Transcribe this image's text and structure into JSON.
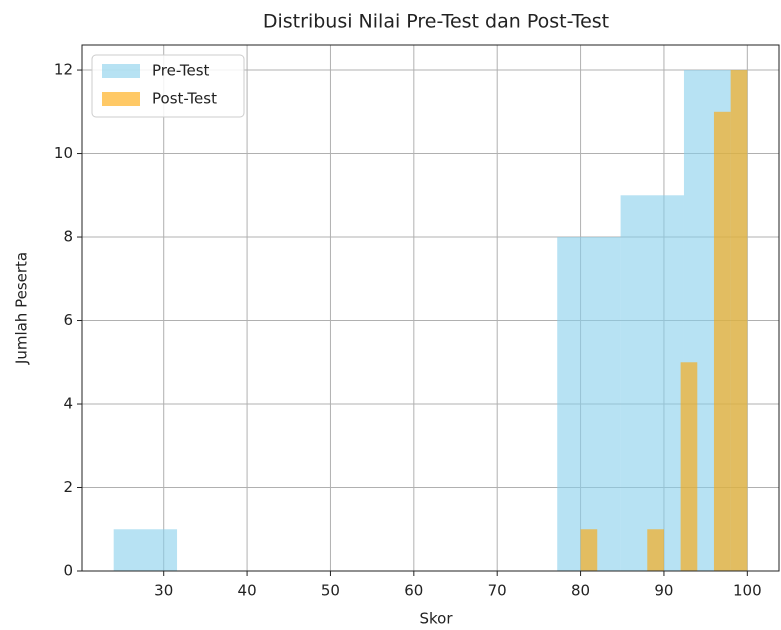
{
  "chart_data": {
    "type": "histogram",
    "title": "Distribusi Nilai Pre-Test dan Post-Test",
    "xlabel": "Skor",
    "ylabel": "Jumlah Peserta",
    "series": [
      {
        "name": "Pre-Test",
        "color": "#87ceeb",
        "opacity": 0.6,
        "bins": [
          24,
          31.6,
          39.2,
          46.8,
          54.4,
          62,
          69.6,
          77.2,
          84.8,
          92.4,
          100
        ],
        "values": [
          1,
          0,
          0,
          0,
          0,
          0,
          0,
          8,
          9,
          12
        ]
      },
      {
        "name": "Post-Test",
        "color": "#ffa500",
        "opacity": 0.6,
        "bins": [
          80,
          82,
          84,
          86,
          88,
          90,
          92,
          94,
          96,
          98,
          100
        ],
        "values": [
          1,
          0,
          0,
          0,
          1,
          0,
          5,
          0,
          11,
          12
        ]
      }
    ],
    "xlim": [
      20.2,
      103.8
    ],
    "xticks": [
      30,
      40,
      50,
      60,
      70,
      80,
      90,
      100
    ],
    "ylim": [
      0,
      12.6
    ],
    "yticks": [
      0,
      2,
      4,
      6,
      8,
      10,
      12
    ],
    "grid": true,
    "legend": "upper left"
  }
}
